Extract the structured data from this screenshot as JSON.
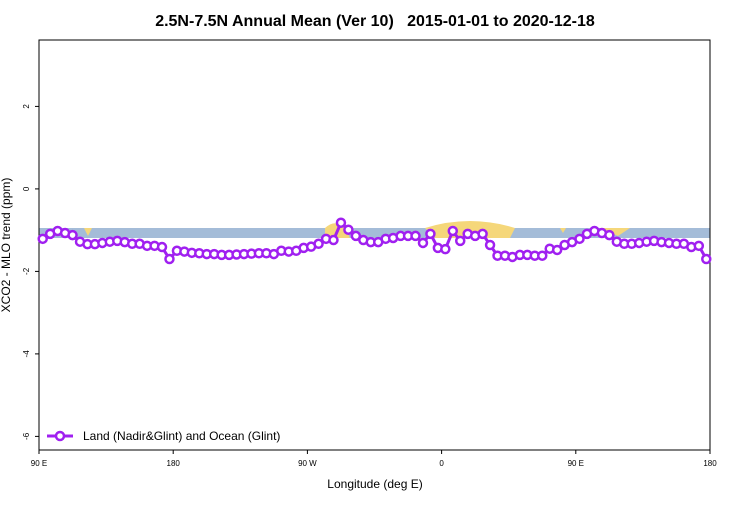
{
  "chart_data": {
    "type": "line",
    "title": "2.5N-7.5N Annual Mean (Ver 10)   2015-01-01 to 2020-12-18",
    "x_label": "Longitude (deg E)",
    "y_label": "XCO2 - MLO trend (ppm)",
    "x": [
      92.5,
      97.5,
      102.5,
      107.5,
      112.5,
      117.5,
      122.5,
      127.5,
      132.5,
      137.5,
      142.5,
      147.5,
      152.5,
      157.5,
      162.5,
      167.5,
      172.5,
      177.5,
      182.5,
      187.5,
      192.5,
      197.5,
      202.5,
      207.5,
      212.5,
      217.5,
      222.5,
      227.5,
      232.5,
      237.5,
      242.5,
      247.5,
      252.5,
      257.5,
      262.5,
      267.5,
      272.5,
      277.5,
      282.5,
      287.5,
      292.5,
      297.5,
      302.5,
      307.5,
      312.5,
      317.5,
      322.5,
      327.5,
      332.5,
      337.5,
      342.5,
      347.5,
      352.5,
      357.5,
      362.5,
      367.5,
      372.5,
      377.5,
      382.5,
      387.5,
      392.5,
      397.5,
      402.5,
      407.5,
      412.5,
      417.5,
      422.5,
      427.5,
      432.5,
      437.5,
      442.5,
      447.5,
      452.5,
      457.5,
      462.5,
      467.5,
      472.5,
      477.5,
      482.5,
      487.5,
      492.5,
      497.5,
      502.5,
      507.5,
      512.5,
      517.5,
      522.5,
      527.5,
      532.5,
      537.5
    ],
    "series": [
      {
        "name": "Land (Nadir&Glint) and Ocean (Glint)",
        "color": "#a020f0",
        "values": [
          -1.21,
          -1.09,
          -1.02,
          -1.07,
          -1.12,
          -1.28,
          -1.34,
          -1.34,
          -1.31,
          -1.28,
          -1.26,
          -1.29,
          -1.33,
          -1.33,
          -1.38,
          -1.38,
          -1.41,
          -1.7,
          -1.5,
          -1.52,
          -1.55,
          -1.56,
          -1.58,
          -1.58,
          -1.6,
          -1.6,
          -1.59,
          -1.58,
          -1.57,
          -1.56,
          -1.56,
          -1.58,
          -1.5,
          -1.52,
          -1.5,
          -1.43,
          -1.4,
          -1.33,
          -1.21,
          -1.24,
          -0.82,
          -0.99,
          -1.14,
          -1.24,
          -1.29,
          -1.29,
          -1.21,
          -1.19,
          -1.14,
          -1.14,
          -1.14,
          -1.31,
          -1.09,
          -1.43,
          -1.46,
          -1.02,
          -1.26,
          -1.09,
          -1.14,
          -1.09,
          -1.36,
          -1.62,
          -1.62,
          -1.65,
          -1.6,
          -1.6,
          -1.62,
          -1.62,
          -1.45,
          -1.48,
          -1.36,
          -1.29,
          -1.21,
          -1.09,
          -1.02,
          -1.07,
          -1.12,
          -1.28,
          -1.33,
          -1.33,
          -1.31,
          -1.28,
          -1.26,
          -1.29,
          -1.31,
          -1.33,
          -1.33,
          -1.41,
          -1.38,
          -1.7
        ]
      }
    ],
    "xlim": [
      90,
      540
    ],
    "xticks": [
      {
        "value": 90,
        "label": "90 E"
      },
      180,
      {
        "value": 270,
        "label": "90 W"
      },
      {
        "value": 360,
        "label": "0"
      },
      {
        "value": 450,
        "label": "90 E"
      },
      {
        "value": 540,
        "label": "180"
      }
    ],
    "ylim": [
      -6.33,
      3.61
    ],
    "yticks": [
      -6,
      -4,
      -2,
      0,
      2
    ],
    "legend": "bottom-left"
  }
}
